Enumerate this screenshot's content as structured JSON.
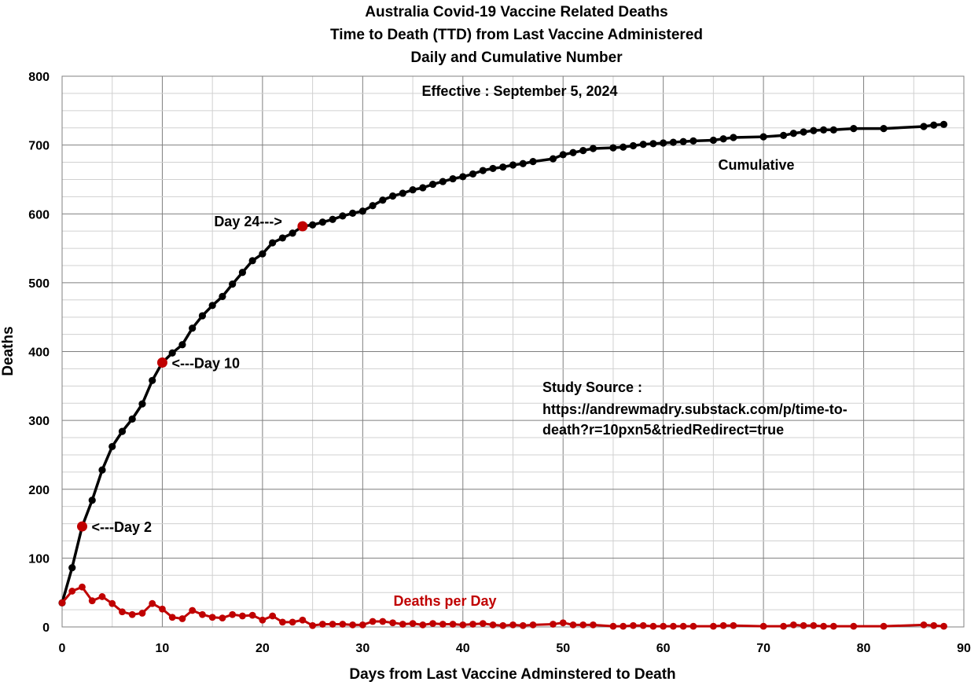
{
  "chart_data": {
    "type": "line",
    "title": [
      "Australia Covid-19 Vaccine Related Deaths",
      "Time to Death (TTD) from Last Vaccine Administered",
      "Daily and Cumulative Number"
    ],
    "subtitle": "Effective : September 5, 2024",
    "xlabel": "Days from Last Vaccine Adminstered to Death",
    "ylabel": "Deaths",
    "xlim": [
      0,
      90
    ],
    "ylim": [
      0,
      800
    ],
    "xticks": [
      0,
      10,
      20,
      30,
      40,
      50,
      60,
      70,
      80,
      90
    ],
    "yticks": [
      0,
      100,
      200,
      300,
      400,
      500,
      600,
      700,
      800
    ],
    "grid": true,
    "colors": {
      "cumulative": "#000000",
      "daily": "#c00000",
      "highlight": "#c00000"
    },
    "series": [
      {
        "name": "Cumulative",
        "x": [
          0,
          1,
          2,
          3,
          4,
          5,
          6,
          7,
          8,
          9,
          10,
          11,
          12,
          13,
          14,
          15,
          16,
          17,
          18,
          19,
          20,
          21,
          22,
          23,
          24,
          25,
          26,
          27,
          28,
          29,
          30,
          31,
          32,
          33,
          34,
          35,
          36,
          37,
          38,
          39,
          40,
          41,
          42,
          43,
          44,
          45,
          46,
          47,
          49,
          50,
          51,
          52,
          53,
          55,
          56,
          57,
          58,
          59,
          60,
          61,
          62,
          63,
          65,
          66,
          67,
          70,
          72,
          73,
          74,
          75,
          76,
          77,
          79,
          82,
          86,
          87,
          88
        ],
        "y": [
          35,
          86,
          146,
          184,
          228,
          262,
          284,
          302,
          324,
          358,
          384,
          398,
          410,
          434,
          452,
          467,
          480,
          498,
          515,
          532,
          542,
          558,
          565,
          572,
          582,
          584,
          588,
          592,
          597,
          601,
          604,
          612,
          620,
          626,
          630,
          635,
          638,
          643,
          647,
          651,
          654,
          658,
          663,
          666,
          668,
          671,
          673,
          676,
          680,
          686,
          689,
          692,
          695,
          696,
          697,
          699,
          701,
          702,
          703,
          704,
          705,
          706,
          707,
          709,
          711,
          712,
          714,
          717,
          719,
          721,
          722,
          722,
          724,
          724,
          727,
          729,
          730
        ]
      },
      {
        "name": "Deaths per Day",
        "x": [
          0,
          1,
          2,
          3,
          4,
          5,
          6,
          7,
          8,
          9,
          10,
          11,
          12,
          13,
          14,
          15,
          16,
          17,
          18,
          19,
          20,
          21,
          22,
          23,
          24,
          25,
          26,
          27,
          28,
          29,
          30,
          31,
          32,
          33,
          34,
          35,
          36,
          37,
          38,
          39,
          40,
          41,
          42,
          43,
          44,
          45,
          46,
          47,
          49,
          50,
          51,
          52,
          53,
          55,
          56,
          57,
          58,
          59,
          60,
          61,
          62,
          63,
          65,
          66,
          67,
          70,
          72,
          73,
          74,
          75,
          76,
          77,
          79,
          82,
          86,
          87,
          88
        ],
        "y": [
          35,
          52,
          58,
          38,
          44,
          34,
          22,
          18,
          20,
          34,
          26,
          14,
          12,
          24,
          18,
          14,
          13,
          18,
          16,
          17,
          10,
          16,
          7,
          7,
          10,
          2,
          4,
          4,
          4,
          3,
          3,
          8,
          8,
          6,
          4,
          5,
          3,
          5,
          4,
          4,
          3,
          4,
          5,
          3,
          2,
          3,
          2,
          3,
          4,
          6,
          3,
          3,
          3,
          1,
          1,
          2,
          2,
          1,
          1,
          1,
          1,
          1,
          1,
          2,
          2,
          1,
          1,
          3,
          2,
          2,
          1,
          1,
          1,
          1,
          3,
          2,
          1
        ]
      }
    ],
    "highlights": [
      {
        "x": 2,
        "y": 146,
        "label": "<---Day 2"
      },
      {
        "x": 10,
        "y": 384,
        "label": "<---Day 10"
      },
      {
        "x": 24,
        "y": 582,
        "label": "Day 24--->"
      }
    ],
    "annotations": {
      "cumulative_label": "Cumulative",
      "daily_label": "Deaths per Day",
      "source_lines": [
        "Study Source :",
        "https://andrewmadry.substack.com/p/time-to-",
        "death?r=10pxn5&triedRedirect=true"
      ]
    }
  }
}
